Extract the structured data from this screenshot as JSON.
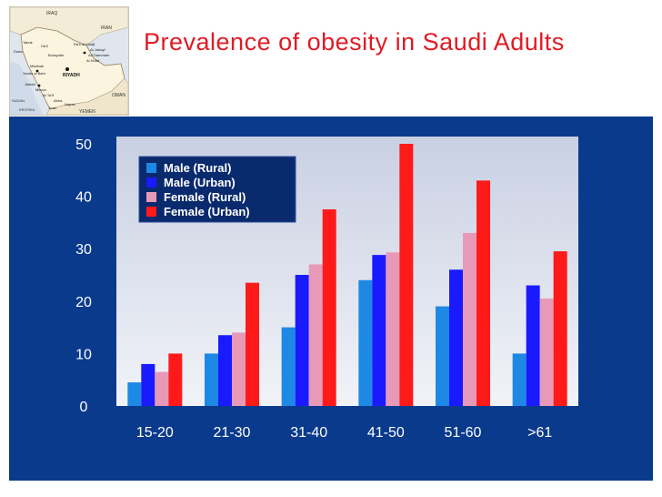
{
  "slide": {
    "title": "Prevalence of obesity in Saudi Adults"
  },
  "map": {
    "icon": "saudi-arabia-map-icon",
    "labels": {
      "iraq": "IRAQ",
      "iran": "IRAN",
      "tabuk": "Tabuk",
      "hail": "Ha'il",
      "duba": "Duba",
      "ras_al_khafji": "Ra's al Khafji",
      "buraydah": "Buraydah",
      "al_jubayl": "Al-Jubayl",
      "ad_dammam": "Ad Dammam",
      "al_hufuf": "Al Hufuf",
      "madinah": "Madinah",
      "yanbu": "Yanbu al Bahr",
      "riyadh": "RIYADH",
      "jeddah": "Jiddah",
      "mecca": "Mecca",
      "at_taif": "At Ta'if",
      "abha": "Abha",
      "najran": "Najran",
      "jizan": "Jizan",
      "oman": "OMAN",
      "yemen": "YEMEN",
      "sudan": "SUDAN",
      "eritrea": "ERITREA"
    }
  },
  "chart_data": {
    "type": "bar",
    "categories": [
      "15-20",
      "21-30",
      "31-40",
      "41-50",
      "51-60",
      ">61"
    ],
    "series": [
      {
        "name": "Male (Rural)",
        "color": "#1e88e5",
        "values": [
          4.5,
          10,
          15,
          24,
          19,
          10
        ]
      },
      {
        "name": "Male (Urban)",
        "color": "#1a1aff",
        "values": [
          8,
          13.5,
          25,
          28.8,
          26,
          23
        ]
      },
      {
        "name": "Female (Rural)",
        "color": "#e899b8",
        "values": [
          6.5,
          14,
          27,
          29.3,
          33,
          20.5
        ]
      },
      {
        "name": "Female (Urban)",
        "color": "#ff1a1a",
        "values": [
          10,
          23.5,
          37.5,
          50,
          43,
          29.5
        ]
      }
    ],
    "ylim": [
      0,
      50
    ],
    "yticks": [
      "0",
      "10",
      "20",
      "30",
      "40",
      "50"
    ],
    "xlabel": "",
    "ylabel": "",
    "grid": false,
    "legend_position": "top-left"
  },
  "colors": {
    "title": "#e01b24",
    "panel_background": "#0a3a8c",
    "plot_background": "#e0e4ee",
    "axis_text": "#ffffff"
  }
}
